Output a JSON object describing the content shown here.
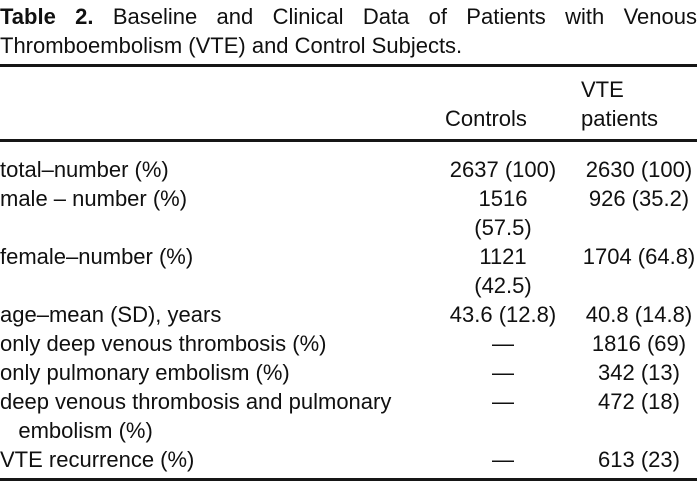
{
  "caption": {
    "label": "Table 2.",
    "text": "Baseline and Clinical Data of Patients with Venous Thromboembolism (VTE) and Control Subjects."
  },
  "table": {
    "header": {
      "label_column": "",
      "controls": "Controls",
      "vte_patients": "VTE\npatients"
    },
    "rows": [
      {
        "label": "total–number (%)",
        "controls": "2637 (100)",
        "vte": "2630 (100)"
      },
      {
        "label": "male – number (%)",
        "controls": "1516\n(57.5)",
        "vte": "926 (35.2)"
      },
      {
        "label": "female–number (%)",
        "controls": "1121\n(42.5)",
        "vte": "1704 (64.8)"
      },
      {
        "label": "age–mean (SD), years",
        "controls": "43.6 (12.8)",
        "vte": "40.8 (14.8)"
      },
      {
        "label": "only deep venous thrombosis (%)",
        "controls": "—",
        "vte": "1816 (69)"
      },
      {
        "label": "only pulmonary embolism (%)",
        "controls": "—",
        "vte": "342 (13)"
      },
      {
        "label": "deep venous thrombosis and pulmonary\n   embolism (%)",
        "controls": "—",
        "vte": "472 (18)"
      },
      {
        "label": "VTE recurrence (%)",
        "controls": "—",
        "vte": "613 (23)"
      }
    ]
  },
  "colors": {
    "text": "#101010",
    "background": "#ffffff",
    "rule": "#161616"
  }
}
